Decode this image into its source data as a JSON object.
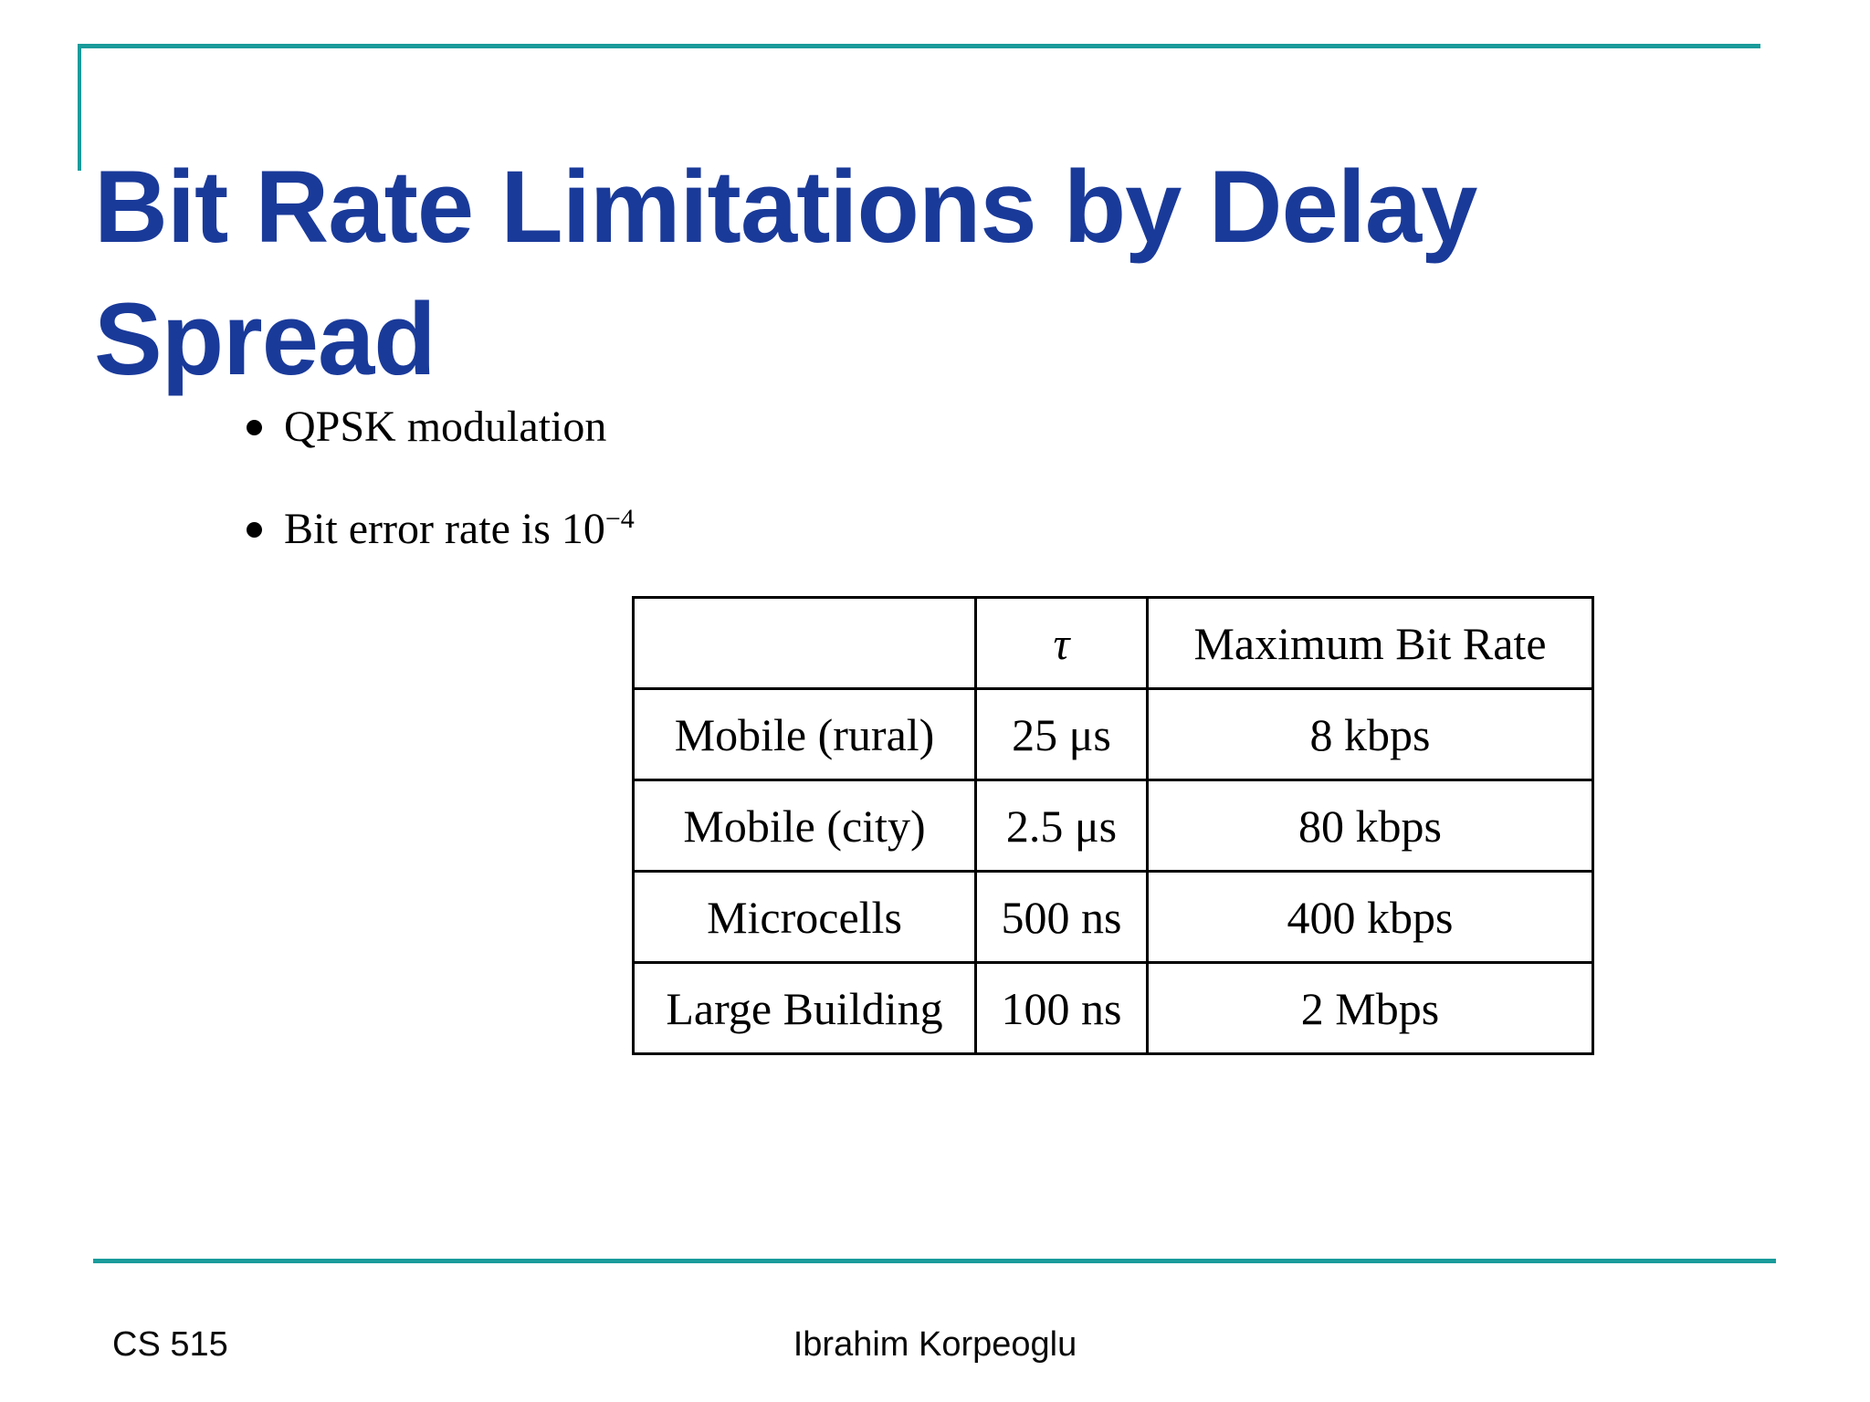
{
  "slide": {
    "title": {
      "lines": [
        "Bit Rate Limitations by Delay",
        "Spread"
      ]
    },
    "bullets": [
      {
        "text": "QPSK modulation",
        "sup": ""
      },
      {
        "text": "Bit error rate is 10",
        "sup": "−4"
      }
    ],
    "table": {
      "headers": [
        "",
        "τ",
        "Maximum Bit Rate"
      ],
      "rows": [
        [
          "Mobile (rural)",
          "25 μs",
          "8 kbps"
        ],
        [
          "Mobile (city)",
          "2.5 μs",
          "80 kbps"
        ],
        [
          "Microcells",
          "500 ns",
          "400 kbps"
        ],
        [
          "Large Building",
          "100 ns",
          "2 Mbps"
        ]
      ]
    },
    "footer": {
      "course": "CS 515",
      "author": "Ibrahim Korpeoglu"
    },
    "colors": {
      "accent_teal": "#1a9b9b",
      "title_blue": "#1a3a9a"
    }
  }
}
